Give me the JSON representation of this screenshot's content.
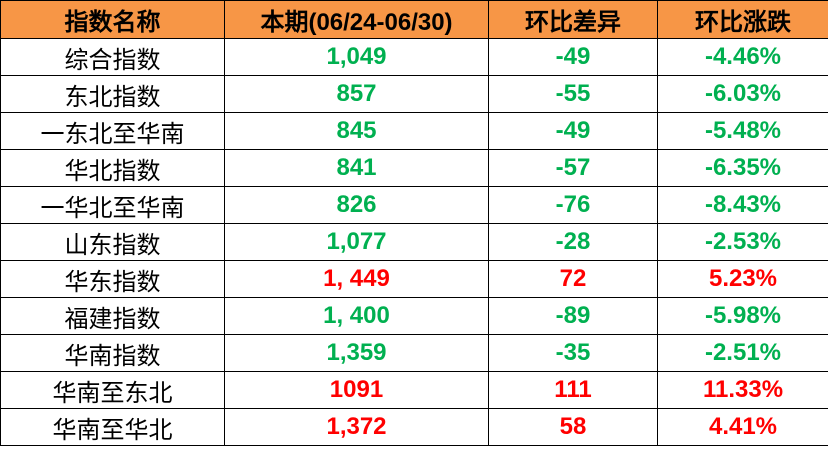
{
  "headers": [
    "指数名称",
    "本期(06/24-06/30)",
    "环比差异",
    "环比涨跌"
  ],
  "colors": {
    "header_bg": "#F79646",
    "up": "#FF0000",
    "down": "#00B050"
  },
  "rows": [
    {
      "name": "综合指数",
      "value": "1,049",
      "diff": "-49",
      "pct": "-4.46%",
      "trend": "down"
    },
    {
      "name": "东北指数",
      "value": "857",
      "diff": "-55",
      "pct": "-6.03%",
      "trend": "down"
    },
    {
      "name": "一东北至华南",
      "value": "845",
      "diff": "-49",
      "pct": "-5.48%",
      "trend": "down"
    },
    {
      "name": "华北指数",
      "value": "841",
      "diff": "-57",
      "pct": "-6.35%",
      "trend": "down"
    },
    {
      "name": "一华北至华南",
      "value": "826",
      "diff": "-76",
      "pct": "-8.43%",
      "trend": "down"
    },
    {
      "name": "山东指数",
      "value": "1,077",
      "diff": "-28",
      "pct": "-2.53%",
      "trend": "down"
    },
    {
      "name": "华东指数",
      "value": "1, 449",
      "diff": "72",
      "pct": "5.23%",
      "trend": "up"
    },
    {
      "name": "福建指数",
      "value": "1, 400",
      "diff": "-89",
      "pct": "-5.98%",
      "trend": "down"
    },
    {
      "name": "华南指数",
      "value": "1,359",
      "diff": "-35",
      "pct": "-2.51%",
      "trend": "down"
    },
    {
      "name": "华南至东北",
      "value": "1091",
      "diff": "111",
      "pct": "11.33%",
      "trend": "up"
    },
    {
      "name": "华南至华北",
      "value": "1,372",
      "diff": "58",
      "pct": "4.41%",
      "trend": "up"
    }
  ]
}
